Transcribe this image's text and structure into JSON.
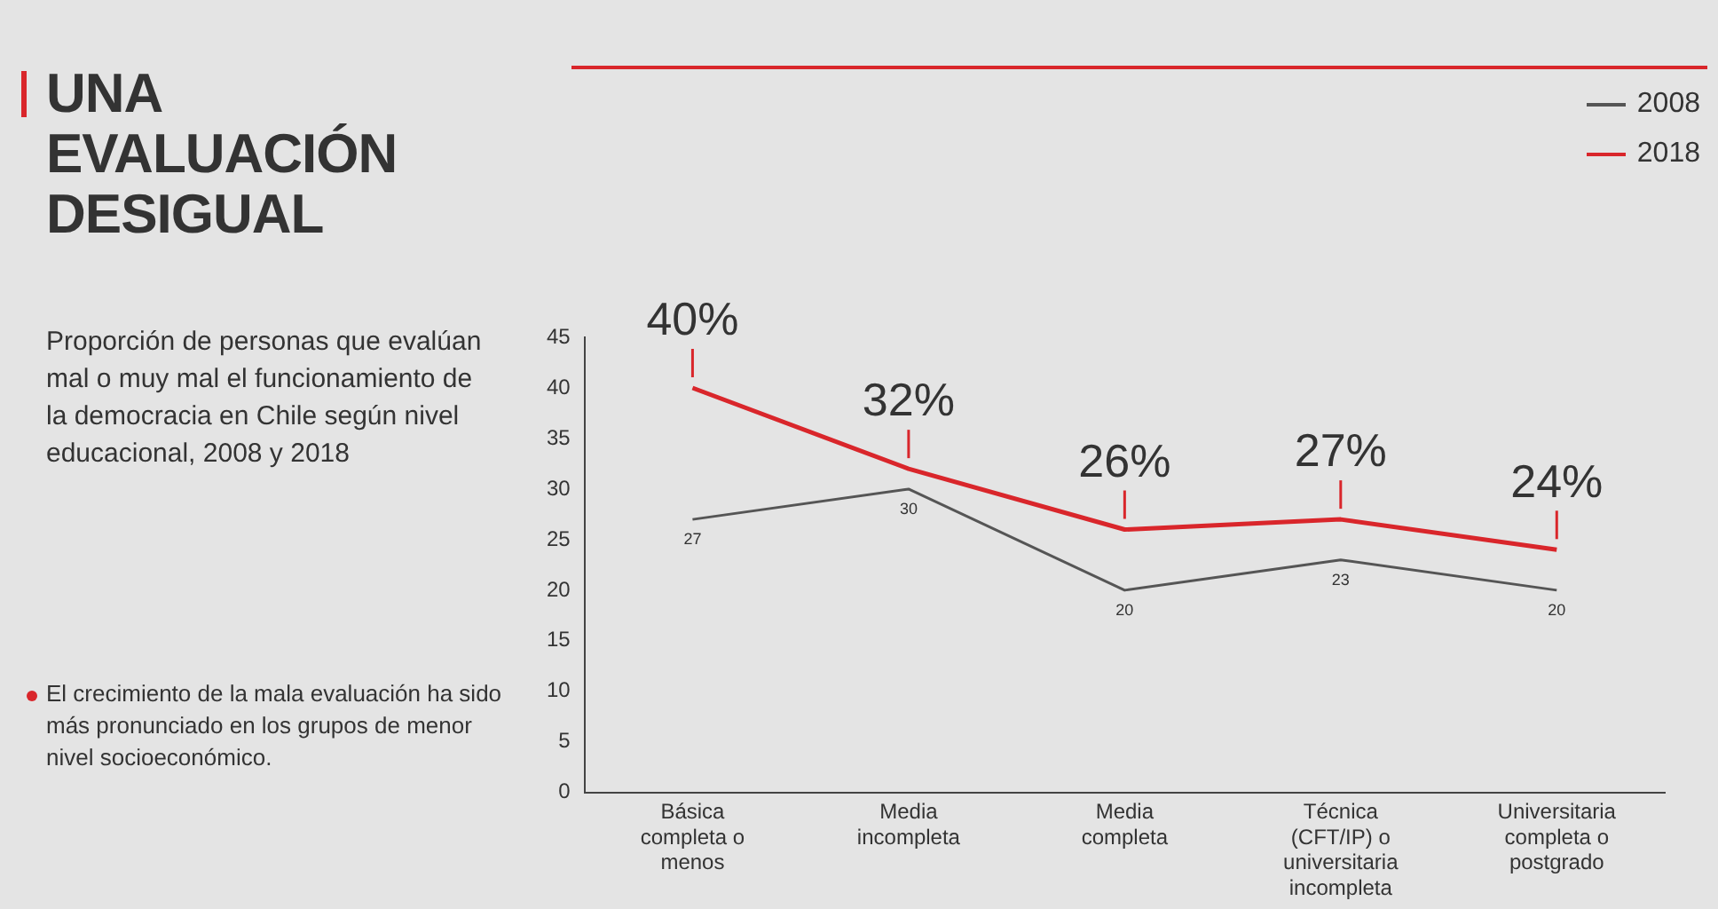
{
  "chart_data": {
    "type": "line",
    "title": "UNA EVALUACIÓN DESIGUAL",
    "subtitle": "Proporción de personas que evalúan mal o muy mal el funcionamiento de la democracia en Chile según nivel educacional, 2008 y 2018",
    "annotations": [
      "El crecimiento de la mala evaluación ha sido más pronunciado en los grupos de menor nivel socioeconómico."
    ],
    "categories": [
      "Básica completa o menos",
      "Media incompleta",
      "Media completa",
      "Técnica (CFT/IP) o universitaria incompleta",
      "Universitaria completa o postgrado"
    ],
    "series": [
      {
        "name": "2008",
        "color": "#555555",
        "values": [
          27,
          30,
          20,
          23,
          20
        ],
        "value_labels": [
          "27",
          "30",
          "20",
          "23",
          "20"
        ]
      },
      {
        "name": "2018",
        "color": "#d9262b",
        "values": [
          40,
          32,
          26,
          27,
          24
        ],
        "value_labels": [
          "40%",
          "32%",
          "26%",
          "27%",
          "24%"
        ]
      }
    ],
    "ylim": [
      0,
      45
    ],
    "yticks": [
      0,
      5,
      10,
      15,
      20,
      25,
      30,
      35,
      40,
      45
    ],
    "grid": false,
    "legend": "top right",
    "marker": "none",
    "line_style": "solid"
  }
}
